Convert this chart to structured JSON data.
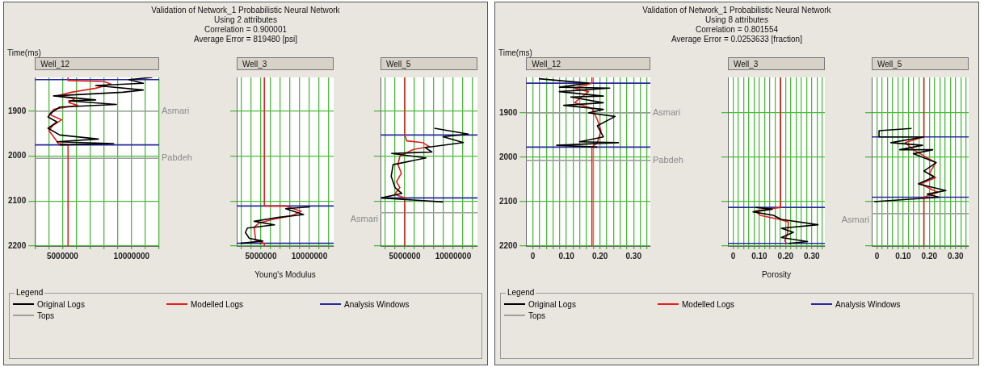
{
  "chart_data": [
    {
      "type": "line",
      "title": "Well_12",
      "ylabel": "Time(ms)",
      "legend": "bottom",
      "legend_title": "Legend",
      "grid": true,
      "marker": "none",
      "line_style": "solid",
      "annotations": [
        "Validation of Network_1 Probabilistic Neural Network",
        "Using 2 attributes",
        "Correlation = 0.900001",
        "Average Error = 819480 [psi]",
        {
          "text": "Asmari",
          "x": 12000000,
          "y": 1900
        },
        {
          "text": "Pabdeh",
          "x": 12000000,
          "y": 2005
        }
      ],
      "xlim": [
        3000000,
        12000000
      ],
      "xticks": [
        {
          "value": 3000000,
          "label": null
        },
        {
          "value": 4000000,
          "label": null
        },
        5000000,
        {
          "value": 6000000,
          "label": null
        },
        {
          "value": 7000000,
          "label": null
        },
        {
          "value": 8000000,
          "label": null
        },
        {
          "value": 9000000,
          "label": null
        },
        10000000,
        {
          "value": 11000000,
          "label": null
        },
        {
          "value": 12000000,
          "label": null
        }
      ],
      "ylim": [
        2200,
        1825
      ],
      "yticks": [
        1900,
        2000,
        2100,
        2200
      ],
      "series": [
        {
          "name": "Original Logs",
          "color": "#000000",
          "x": [
            11500000,
            9800000,
            10850000,
            7400000,
            10850000,
            9350000,
            4350000,
            7400000,
            5450000,
            8900000,
            4800000,
            4150000,
            3950000,
            4600000,
            3950000,
            4800000,
            7600000,
            4600000,
            8700000,
            4800000
          ],
          "values": [
            1825,
            1830,
            1838,
            1843,
            1853,
            1858,
            1866,
            1875,
            1877,
            1885,
            1891,
            1904,
            1913,
            1924,
            1938,
            1953,
            1962,
            1968,
            1972,
            1975
          ]
        },
        {
          "name": "Modelled Logs",
          "color": "#e02020",
          "x": [
            5400000,
            5400000,
            8000000,
            8500000,
            7400000,
            5650000,
            4600000,
            5900000,
            5450000,
            6100000,
            4350000,
            4150000,
            4950000,
            4300000,
            4000000,
            4350000,
            4700000,
            5400000,
            5400000
          ],
          "values": [
            1825,
            1832,
            1834,
            1840,
            1849,
            1858,
            1866,
            1872,
            1881,
            1887,
            1896,
            1909,
            1919,
            1932,
            1943,
            1957,
            1972,
            1975,
            2200
          ]
        },
        {
          "name": "Analysis Windows",
          "color": "#2828a0",
          "x": [
            3000000,
            12000000
          ],
          "values": [
            1830,
            1830
          ]
        },
        {
          "color": "#2828a0",
          "x": [
            3000000,
            12000000
          ],
          "values": [
            1975,
            1975
          ]
        },
        {
          "name": "Tops",
          "color": "#a0a0a0",
          "x": [
            3000000,
            12000000
          ],
          "values": [
            1900,
            1900
          ]
        },
        {
          "color": "#a0a0a0",
          "x": [
            3000000,
            12000000
          ],
          "values": [
            2005,
            2005
          ]
        }
      ]
    },
    {
      "type": "line",
      "title": "Well_3",
      "xlabel": "Young's Modulus",
      "grid": true,
      "marker": "none",
      "line_style": "solid",
      "tick_labels": "x",
      "xlim": [
        2500000,
        12500000
      ],
      "xticks": [
        {
          "value": 3000000,
          "label": null
        },
        {
          "value": 4000000,
          "label": null
        },
        5000000,
        {
          "value": 6000000,
          "label": null
        },
        {
          "value": 7000000,
          "label": null
        },
        {
          "value": 8000000,
          "label": null
        },
        {
          "value": 9000000,
          "label": null
        },
        10000000,
        {
          "value": 11000000,
          "label": null
        },
        {
          "value": 12000000,
          "label": null
        }
      ],
      "ylim": [
        2200,
        1825
      ],
      "yticks": [
        1900,
        2000,
        2100,
        2200
      ],
      "series": [
        {
          "color": "#000000",
          "x": [
            10050000,
            7550000,
            9400000,
            6900000,
            4300000,
            6400000,
            3600000,
            3400000,
            3800000,
            5200000,
            2900000
          ],
          "values": [
            2113,
            2117,
            2130,
            2136,
            2145,
            2153,
            2160,
            2170,
            2183,
            2189,
            2194
          ]
        },
        {
          "color": "#e02020",
          "x": [
            5350000,
            5350000,
            7550000,
            9150000,
            8250000,
            6400000,
            4800000,
            4300000,
            4450000,
            5350000,
            5350000
          ],
          "values": [
            1825,
            2111,
            2111,
            2123,
            2132,
            2140,
            2149,
            2158,
            2187,
            2194,
            2200
          ]
        },
        {
          "color": "#2828a0",
          "x": [
            2500000,
            12500000
          ],
          "values": [
            2111,
            2111
          ]
        },
        {
          "color": "#2828a0",
          "x": [
            2500000,
            12500000
          ],
          "values": [
            2194,
            2194
          ]
        }
      ]
    },
    {
      "type": "line",
      "title": "Well_5",
      "grid": true,
      "marker": "none",
      "line_style": "solid",
      "tick_labels": "x",
      "annotations": [
        {
          "text": "Asmari",
          "x": 2500000,
          "y": 2126
        }
      ],
      "xlim": [
        2500000,
        12500000
      ],
      "xticks": [
        {
          "value": 3000000,
          "label": null
        },
        {
          "value": 4000000,
          "label": null
        },
        5000000,
        {
          "value": 6000000,
          "label": null
        },
        {
          "value": 7000000,
          "label": null
        },
        {
          "value": 8000000,
          "label": null
        },
        {
          "value": 9000000,
          "label": null
        },
        10000000,
        {
          "value": 11000000,
          "label": null
        },
        {
          "value": 12000000,
          "label": null
        }
      ],
      "ylim": [
        2200,
        1825
      ],
      "yticks": [
        1900,
        2000,
        2100,
        2200
      ],
      "series": [
        {
          "color": "#000000",
          "x": [
            8050000,
            11550000,
            8950000,
            11050000,
            7100000,
            7800000,
            3650000,
            7200000,
            3800000,
            3600000,
            4000000,
            4700000,
            2600000,
            8950000
          ],
          "values": [
            1938,
            1951,
            1957,
            1970,
            1981,
            1991,
            1994,
            2004,
            2019,
            2045,
            2070,
            2083,
            2093,
            2102
          ]
        },
        {
          "color": "#e02020",
          "x": [
            5000000,
            5000000,
            5200000,
            6850000,
            7550000,
            5900000,
            4500000,
            4300000,
            4650000,
            4150000,
            4500000,
            3950000,
            5000000,
            5000000
          ],
          "values": [
            1825,
            1953,
            1966,
            1970,
            1979,
            1985,
            2000,
            2019,
            2038,
            2057,
            2070,
            2085,
            2093,
            2200
          ]
        },
        {
          "color": "#2828a0",
          "x": [
            2500000,
            12500000
          ],
          "values": [
            1953,
            1953
          ]
        },
        {
          "color": "#2828a0",
          "x": [
            2500000,
            12500000
          ],
          "values": [
            2093,
            2093
          ]
        },
        {
          "color": "#a0a0a0",
          "x": [
            2500000,
            12500000
          ],
          "values": [
            2126,
            2126
          ]
        }
      ]
    },
    {
      "type": "line",
      "title": "Well_12",
      "ylabel": "Time(ms)",
      "legend": "bottom",
      "legend_title": "Legend",
      "grid": true,
      "marker": "none",
      "line_style": "solid",
      "annotations": [
        "Validation of Network_1 Probabilistic Neural Network",
        "Using 8 attributes",
        "Correlation = 0.801554",
        "Average Error = 0.0253633 [fraction]",
        {
          "text": "Asmari",
          "x": 0.35,
          "y": 1900
        },
        {
          "text": "Pabdeh",
          "x": 0.35,
          "y": 2007
        }
      ],
      "xlim": [
        -0.02,
        0.35
      ],
      "xticks": [
        0,
        {
          "value": 0.02,
          "label": null
        },
        {
          "value": 0.04,
          "label": null
        },
        {
          "value": 0.06,
          "label": null
        },
        {
          "value": 0.08,
          "label": null
        },
        {
          "value": 0.1,
          "label": "0.10"
        },
        {
          "value": 0.12,
          "label": null
        },
        {
          "value": 0.14,
          "label": null
        },
        {
          "value": 0.16,
          "label": null
        },
        {
          "value": 0.18,
          "label": null
        },
        {
          "value": 0.2,
          "label": "0.20"
        },
        {
          "value": 0.22,
          "label": null
        },
        {
          "value": 0.24,
          "label": null
        },
        {
          "value": 0.26,
          "label": null
        },
        {
          "value": 0.28,
          "label": null
        },
        {
          "value": 0.3,
          "label": "0.30"
        },
        {
          "value": 0.32,
          "label": null
        },
        {
          "value": 0.34,
          "label": null
        }
      ],
      "ylim": [
        2200,
        1820
      ],
      "yticks": [
        1900,
        2000,
        2100,
        2200
      ],
      "series": [
        {
          "name": "Original Logs",
          "color": "#000000",
          "x": [
            0.018,
            0.166,
            0.079,
            0.229,
            0.079,
            0.21,
            0.113,
            0.21,
            0.092,
            0.21,
            0.166,
            0.245,
            0.192,
            0.21,
            0.139,
            0.255,
            0.071,
            0.192
          ],
          "values": [
            1823,
            1833,
            1842,
            1844,
            1852,
            1862,
            1864,
            1877,
            1883,
            1892,
            1900,
            1908,
            1929,
            1954,
            1965,
            1967,
            1973,
            1977
          ]
        },
        {
          "name": "Modelled Logs",
          "color": "#e02020",
          "x": [
            0.176,
            0.176,
            0.124,
            0.166,
            0.124,
            0.176,
            0.192,
            0.203,
            0.192,
            0.176,
            0.176
          ],
          "values": [
            1820,
            1833,
            1844,
            1852,
            1877,
            1890,
            1915,
            1940,
            1967,
            1977,
            2200
          ]
        },
        {
          "name": "Analysis Windows",
          "color": "#2828a0",
          "x": [
            -0.02,
            0.35
          ],
          "values": [
            1833,
            1833
          ]
        },
        {
          "color": "#2828a0",
          "x": [
            -0.02,
            0.35
          ],
          "values": [
            1977,
            1977
          ]
        },
        {
          "name": "Tops",
          "color": "#a0a0a0",
          "x": [
            -0.02,
            0.35
          ],
          "values": [
            1900,
            1900
          ]
        },
        {
          "color": "#a0a0a0",
          "x": [
            -0.02,
            0.35
          ],
          "values": [
            2007,
            2007
          ]
        }
      ]
    },
    {
      "type": "line",
      "title": "Well_3",
      "xlabel": "Porosity",
      "grid": true,
      "marker": "none",
      "line_style": "solid",
      "tick_labels": "x",
      "xlim": [
        -0.02,
        0.35
      ],
      "xticks": [
        0,
        {
          "value": 0.02,
          "label": null
        },
        {
          "value": 0.04,
          "label": null
        },
        {
          "value": 0.06,
          "label": null
        },
        {
          "value": 0.08,
          "label": null
        },
        {
          "value": 0.1,
          "label": "0.10"
        },
        {
          "value": 0.12,
          "label": null
        },
        {
          "value": 0.14,
          "label": null
        },
        {
          "value": 0.16,
          "label": null
        },
        {
          "value": 0.18,
          "label": null
        },
        {
          "value": 0.2,
          "label": "0.20"
        },
        {
          "value": 0.22,
          "label": null
        },
        {
          "value": 0.24,
          "label": null
        },
        {
          "value": 0.26,
          "label": null
        },
        {
          "value": 0.28,
          "label": null
        },
        {
          "value": 0.3,
          "label": "0.30"
        },
        {
          "value": 0.32,
          "label": null
        },
        {
          "value": 0.34,
          "label": null
        }
      ],
      "ylim": [
        2200,
        1820
      ],
      "yticks": [
        1900,
        2000,
        2100,
        2200
      ],
      "series": [
        {
          "color": "#000000",
          "x": [
            0.086,
            0.149,
            0.076,
            0.154,
            0.184,
            0.324,
            0.184,
            0.23,
            0.184,
            0.284,
            0.211
          ],
          "values": [
            2113,
            2117,
            2123,
            2131,
            2140,
            2152,
            2160,
            2169,
            2181,
            2190,
            2194
          ]
        },
        {
          "color": "#e02020",
          "x": [
            0.181,
            0.181,
            0.086,
            0.103,
            0.176,
            0.211,
            0.208,
            0.197,
            0.203
          ],
          "values": [
            1820,
            2113,
            2121,
            2131,
            2140,
            2146,
            2171,
            2188,
            2194
          ]
        },
        {
          "color": "#2828a0",
          "x": [
            -0.02,
            0.35
          ],
          "values": [
            2113,
            2113
          ]
        },
        {
          "color": "#2828a0",
          "x": [
            -0.02,
            0.35
          ],
          "values": [
            2194,
            2194
          ]
        }
      ]
    },
    {
      "type": "line",
      "title": "Well_5",
      "grid": true,
      "marker": "none",
      "line_style": "solid",
      "tick_labels": "x",
      "annotations": [
        {
          "text": "Asmari",
          "x": -0.02,
          "y": 2127
        }
      ],
      "xlim": [
        -0.02,
        0.35
      ],
      "xticks": [
        0,
        {
          "value": 0.02,
          "label": null
        },
        {
          "value": 0.04,
          "label": null
        },
        {
          "value": 0.06,
          "label": null
        },
        {
          "value": 0.08,
          "label": null
        },
        {
          "value": 0.1,
          "label": "0.10"
        },
        {
          "value": 0.12,
          "label": null
        },
        {
          "value": 0.14,
          "label": null
        },
        {
          "value": 0.16,
          "label": null
        },
        {
          "value": 0.18,
          "label": null
        },
        {
          "value": 0.2,
          "label": "0.20"
        },
        {
          "value": 0.22,
          "label": null
        },
        {
          "value": 0.24,
          "label": null
        },
        {
          "value": 0.26,
          "label": null
        },
        {
          "value": 0.28,
          "label": null
        },
        {
          "value": 0.3,
          "label": "0.30"
        },
        {
          "value": 0.32,
          "label": null
        },
        {
          "value": 0.34,
          "label": null
        }
      ],
      "ylim": [
        2200,
        1820
      ],
      "yticks": [
        1900,
        2000,
        2100,
        2200
      ],
      "series": [
        {
          "color": "#000000",
          "x": [
            0.132,
            0.008,
            0.008,
            0.179,
            0.053,
            0.174,
            0.087,
            0.213,
            0.139,
            0.226,
            0.179,
            0.218,
            0.158,
            0.263,
            0.192,
            0.237,
            -0.011
          ],
          "values": [
            1935,
            1940,
            1954,
            1954,
            1967,
            1973,
            1983,
            1983,
            1992,
            2012,
            2031,
            2044,
            2060,
            2075,
            2083,
            2090,
            2100
          ]
        },
        {
          "color": "#e02020",
          "x": [
            0.179,
            0.179,
            0.108,
            0.139,
            0.224,
            0.2,
            0.224,
            0.166,
            0.232,
            0.179,
            0.179
          ],
          "values": [
            1820,
            1954,
            1967,
            1983,
            2012,
            2037,
            2046,
            2060,
            2079,
            2090,
            2200
          ]
        },
        {
          "color": "#2828a0",
          "x": [
            -0.02,
            0.35
          ],
          "values": [
            1954,
            1954
          ]
        },
        {
          "color": "#2828a0",
          "x": [
            -0.02,
            0.35
          ],
          "values": [
            2090,
            2090
          ]
        },
        {
          "color": "#a0a0a0",
          "x": [
            -0.02,
            0.35
          ],
          "values": [
            2127,
            2127
          ]
        }
      ]
    }
  ]
}
